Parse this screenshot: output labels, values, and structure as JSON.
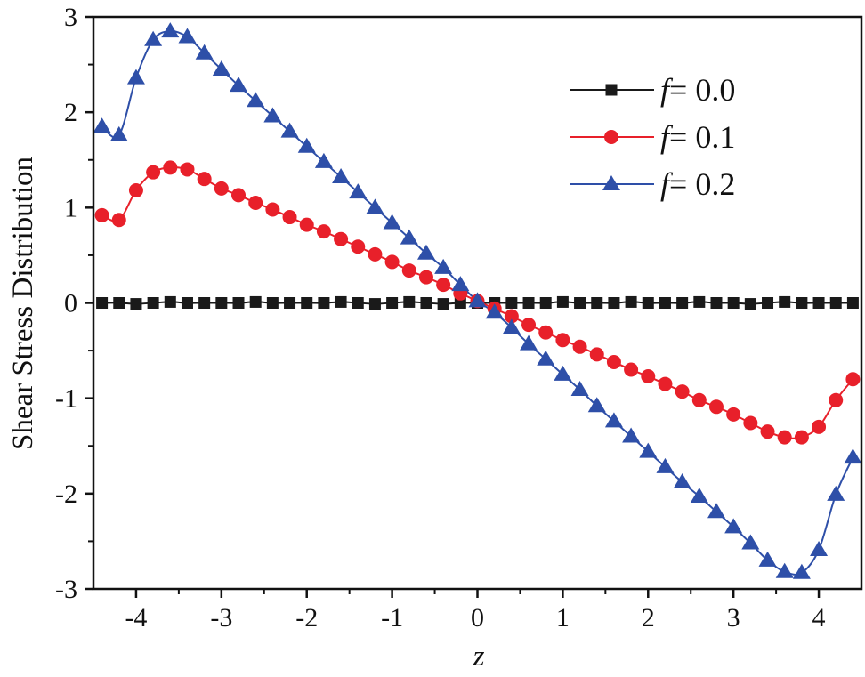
{
  "chart_data": {
    "type": "line",
    "title": "",
    "xlabel": "z",
    "ylabel": "Shear Stress Distribution",
    "xlim": [
      -4.5,
      4.5
    ],
    "ylim": [
      -3,
      3
    ],
    "xticks": [
      -4,
      -3,
      -2,
      -1,
      0,
      1,
      2,
      3,
      4
    ],
    "xtick_labels": [
      "-4",
      "-3",
      "-2",
      "-1",
      "0",
      "1",
      "2",
      "3",
      "4"
    ],
    "yticks": [
      -3,
      -2,
      -1,
      0,
      1,
      2,
      3
    ],
    "ytick_labels": [
      "-3",
      "-2",
      "-1",
      "0",
      "1",
      "2",
      "3"
    ],
    "grid": false,
    "legend_position": "upper right",
    "x": [
      -4.4,
      -4.2,
      -4.0,
      -3.8,
      -3.6,
      -3.4,
      -3.2,
      -3.0,
      -2.8,
      -2.6,
      -2.4,
      -2.2,
      -2.0,
      -1.8,
      -1.6,
      -1.4,
      -1.2,
      -1.0,
      -0.8,
      -0.6,
      -0.4,
      -0.2,
      0.0,
      0.2,
      0.4,
      0.6,
      0.8,
      1.0,
      1.2,
      1.4,
      1.6,
      1.8,
      2.0,
      2.2,
      2.4,
      2.6,
      2.8,
      3.0,
      3.2,
      3.4,
      3.6,
      3.8,
      4.0,
      4.2,
      4.4
    ],
    "series": [
      {
        "name": "f= 0.0",
        "legend_italic_prefix": "f",
        "legend_suffix": "= 0.0",
        "color": "#1a1a1a",
        "marker": "square",
        "values": [
          0.0,
          0.0,
          -0.01,
          0.0,
          0.01,
          0.0,
          0.0,
          0.0,
          0.0,
          0.01,
          0.0,
          0.0,
          0.0,
          0.0,
          0.01,
          0.0,
          -0.01,
          0.0,
          0.01,
          0.0,
          -0.01,
          0.0,
          0.0,
          0.0,
          0.0,
          0.0,
          0.0,
          0.01,
          0.0,
          0.0,
          0.0,
          0.01,
          0.0,
          0.0,
          0.0,
          0.01,
          0.0,
          0.0,
          -0.01,
          0.0,
          0.01,
          0.0,
          0.0,
          0.0,
          0.0
        ]
      },
      {
        "name": "f= 0.1",
        "legend_italic_prefix": "f",
        "legend_suffix": "= 0.1",
        "color": "#e8202a",
        "marker": "circle",
        "values": [
          0.92,
          0.87,
          1.18,
          1.37,
          1.42,
          1.4,
          1.3,
          1.2,
          1.13,
          1.05,
          0.98,
          0.9,
          0.82,
          0.75,
          0.67,
          0.59,
          0.51,
          0.43,
          0.34,
          0.27,
          0.19,
          0.1,
          0.02,
          -0.06,
          -0.14,
          -0.23,
          -0.31,
          -0.39,
          -0.46,
          -0.54,
          -0.62,
          -0.7,
          -0.77,
          -0.85,
          -0.93,
          -1.02,
          -1.09,
          -1.17,
          -1.26,
          -1.35,
          -1.41,
          -1.41,
          -1.3,
          -1.02,
          -0.8
        ]
      },
      {
        "name": "f= 0.2",
        "legend_italic_prefix": "f",
        "legend_suffix": "= 0.2",
        "color": "#2e4fa8",
        "marker": "triangle",
        "values": [
          1.85,
          1.76,
          2.36,
          2.76,
          2.85,
          2.79,
          2.62,
          2.45,
          2.28,
          2.12,
          1.96,
          1.8,
          1.64,
          1.48,
          1.32,
          1.16,
          1.0,
          0.84,
          0.68,
          0.52,
          0.37,
          0.19,
          0.02,
          -0.1,
          -0.26,
          -0.43,
          -0.59,
          -0.75,
          -0.91,
          -1.08,
          -1.24,
          -1.4,
          -1.56,
          -1.72,
          -1.88,
          -2.03,
          -2.19,
          -2.35,
          -2.52,
          -2.7,
          -2.82,
          -2.83,
          -2.59,
          -2.01,
          -1.62
        ]
      }
    ]
  }
}
